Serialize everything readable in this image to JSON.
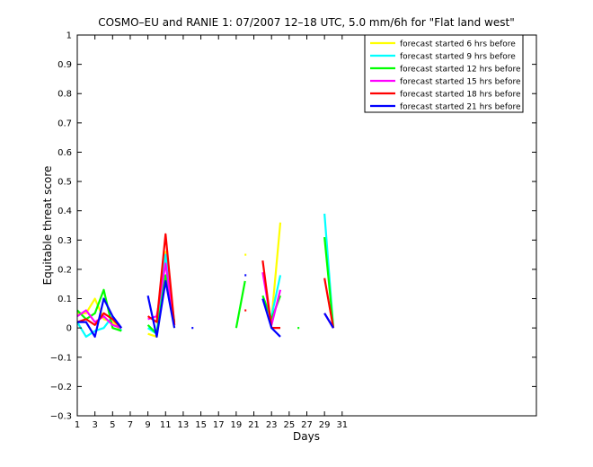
{
  "chart_data": {
    "type": "line",
    "title": "COSMO–EU and RANIE 1: 07/2007 12–18 UTC, 5.0 mm/6h for \"Flat land west\"",
    "xlabel": "Days",
    "ylabel": "Equitable threat score",
    "xlim": [
      1,
      53
    ],
    "ylim": [
      -0.3,
      1
    ],
    "x_ticks": [
      1,
      3,
      5,
      7,
      9,
      11,
      13,
      15,
      17,
      19,
      21,
      23,
      25,
      27,
      29,
      31
    ],
    "y_ticks": [
      -0.3,
      -0.2,
      -0.1,
      0,
      0.1,
      0.2,
      0.3,
      0.4,
      0.5,
      0.6,
      0.7,
      0.8,
      0.9,
      1
    ],
    "y_tick_labels": [
      "−0.3",
      "−0.2",
      "−0.1",
      "0",
      "0.1",
      "0.2",
      "0.3",
      "0.4",
      "0.5",
      "0.6",
      "0.7",
      "0.8",
      "0.9",
      "1"
    ],
    "legend_position": "top-right",
    "grid": false,
    "series": [
      {
        "name": "forecast started 6 hrs before",
        "color": "#ffff00",
        "values": [
          0.05,
          0.05,
          0.1,
          0.03,
          0.02,
          -0.01,
          null,
          null,
          -0.02,
          -0.03,
          0.26,
          0.0,
          null,
          null,
          null,
          null,
          null,
          null,
          null,
          0.25,
          null,
          null,
          0.03,
          0.36,
          null,
          null,
          null,
          null,
          0.05,
          0.0,
          null
        ]
      },
      {
        "name": "forecast started 9 hrs before",
        "color": "#00ffff",
        "values": [
          0.02,
          -0.03,
          -0.01,
          0.0,
          0.04,
          -0.01,
          null,
          null,
          0.0,
          -0.02,
          0.25,
          0.02,
          null,
          null,
          null,
          null,
          null,
          null,
          null,
          null,
          null,
          null,
          0.04,
          0.18,
          null,
          null,
          null,
          null,
          0.39,
          0.0,
          null
        ]
      },
      {
        "name": "forecast started 12 hrs before",
        "color": "#00ff00",
        "values": [
          0.06,
          0.03,
          0.05,
          0.13,
          0.0,
          -0.01,
          null,
          null,
          0.01,
          -0.02,
          0.18,
          0.02,
          null,
          null,
          null,
          null,
          null,
          null,
          0.0,
          0.16,
          null,
          0.11,
          0.03,
          0.11,
          null,
          0.0,
          null,
          null,
          0.31,
          0.0,
          null
        ]
      },
      {
        "name": "forecast started 15 hrs before",
        "color": "#ff00ff",
        "values": [
          0.04,
          0.06,
          0.02,
          0.04,
          0.01,
          0.0,
          null,
          null,
          0.03,
          0.04,
          0.22,
          0.01,
          null,
          null,
          null,
          null,
          null,
          null,
          null,
          null,
          null,
          0.19,
          0.01,
          0.13,
          null,
          null,
          null,
          null,
          0.05,
          0.0,
          null
        ]
      },
      {
        "name": "forecast started 18 hrs before",
        "color": "#ff0000",
        "values": [
          0.02,
          0.03,
          0.01,
          0.05,
          0.03,
          0.0,
          null,
          null,
          0.04,
          0.02,
          0.32,
          0.01,
          null,
          null,
          null,
          null,
          null,
          null,
          null,
          0.06,
          null,
          0.23,
          0.0,
          0.0,
          null,
          null,
          null,
          null,
          0.17,
          0.0,
          null
        ]
      },
      {
        "name": "forecast started 21 hrs before",
        "color": "#0000ff",
        "values": [
          0.02,
          0.02,
          -0.03,
          0.1,
          0.04,
          0.0,
          null,
          null,
          0.11,
          -0.03,
          0.16,
          0.0,
          null,
          0.0,
          null,
          null,
          null,
          null,
          null,
          0.18,
          null,
          0.1,
          0.0,
          -0.03,
          null,
          null,
          null,
          null,
          0.05,
          0.0,
          null
        ]
      }
    ]
  }
}
